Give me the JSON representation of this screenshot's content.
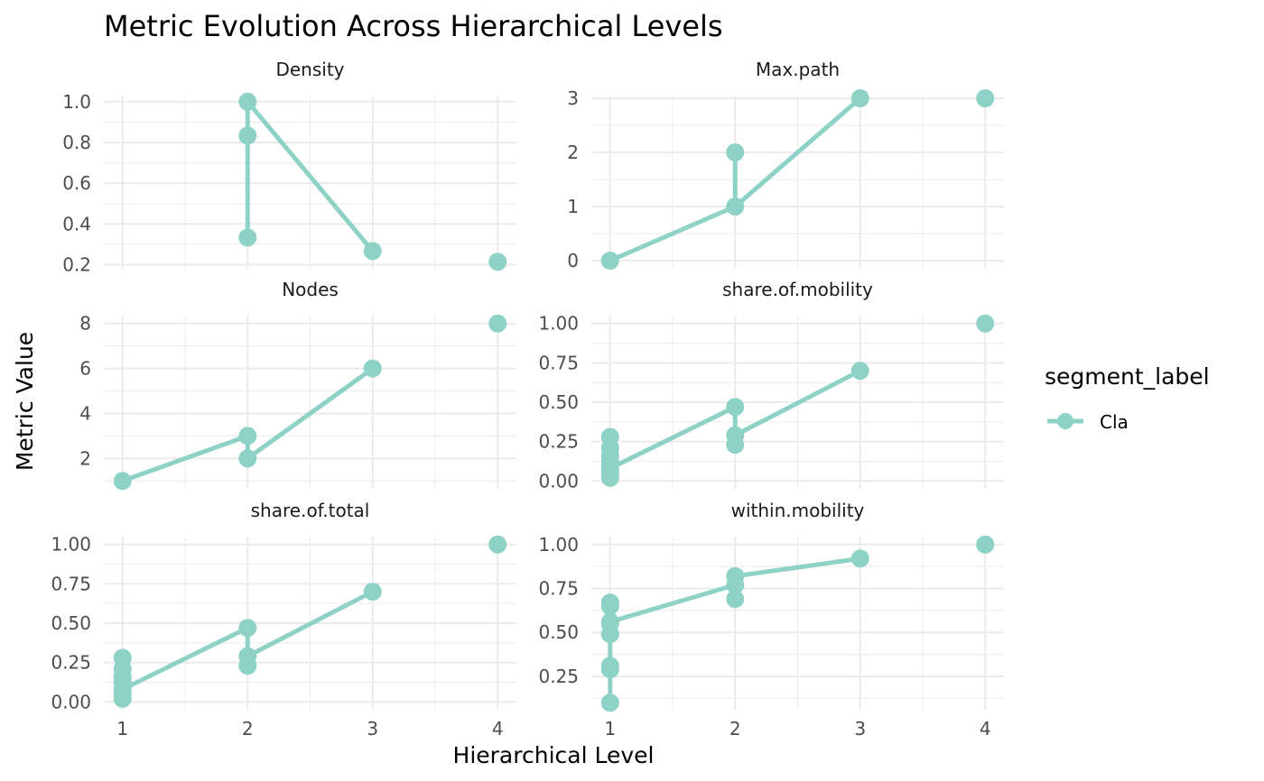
{
  "chart_data": {
    "type": "line",
    "title": "Metric Evolution Across Hierarchical Levels",
    "xlabel": "Hierarchical Level",
    "ylabel": "Metric Value",
    "legend": {
      "title": "segment_label",
      "placement": "right",
      "entries": [
        "Cla"
      ]
    },
    "series_color": "#8ed2c7",
    "grid": true,
    "x_ticks": [
      "1",
      "2",
      "3",
      "4"
    ],
    "xlim": [
      0.85,
      4.15
    ],
    "panels": [
      {
        "name": "Density",
        "ylim": [
          0.18,
          1.03
        ],
        "y_ticks": [
          {
            "v": 0.2,
            "label": "0.2"
          },
          {
            "v": 0.4,
            "label": "0.4"
          },
          {
            "v": 0.6,
            "label": "0.6"
          },
          {
            "v": 0.8,
            "label": "0.8"
          },
          {
            "v": 1.0,
            "label": "1.0"
          }
        ],
        "points": [
          [
            2,
            1.0
          ],
          [
            2,
            0.833
          ],
          [
            2,
            0.333
          ],
          [
            3,
            0.267
          ],
          [
            4,
            0.214
          ]
        ],
        "path": [
          [
            2,
            0.333
          ],
          [
            2,
            0.833
          ],
          [
            2,
            1.0
          ],
          [
            3,
            0.267
          ]
        ]
      },
      {
        "name": "Max.path",
        "ylim": [
          -0.15,
          3.05
        ],
        "y_ticks": [
          {
            "v": 0,
            "label": "0"
          },
          {
            "v": 1,
            "label": "1"
          },
          {
            "v": 2,
            "label": "2"
          },
          {
            "v": 3,
            "label": "3"
          }
        ],
        "points": [
          [
            1,
            0
          ],
          [
            2,
            1
          ],
          [
            2,
            2
          ],
          [
            3,
            3
          ],
          [
            4,
            3
          ]
        ],
        "path": [
          [
            1,
            0
          ],
          [
            2,
            1
          ],
          [
            2,
            2
          ],
          [
            2,
            1
          ],
          [
            3,
            3
          ]
        ]
      },
      {
        "name": "Nodes",
        "ylim": [
          0.65,
          8.35
        ],
        "y_ticks": [
          {
            "v": 2,
            "label": "2"
          },
          {
            "v": 4,
            "label": "4"
          },
          {
            "v": 6,
            "label": "6"
          },
          {
            "v": 8,
            "label": "8"
          }
        ],
        "points": [
          [
            1,
            1
          ],
          [
            2,
            3
          ],
          [
            2,
            2
          ],
          [
            3,
            6
          ],
          [
            4,
            8
          ]
        ],
        "path": [
          [
            1,
            1
          ],
          [
            2,
            3
          ],
          [
            2,
            2
          ],
          [
            3,
            6
          ]
        ]
      },
      {
        "name": "share.of.mobility",
        "ylim": [
          -0.05,
          1.05
        ],
        "y_ticks": [
          {
            "v": 0,
            "label": "0.00"
          },
          {
            "v": 0.25,
            "label": "0.25"
          },
          {
            "v": 0.5,
            "label": "0.50"
          },
          {
            "v": 0.75,
            "label": "0.75"
          },
          {
            "v": 1.0,
            "label": "1.00"
          }
        ],
        "points": [
          [
            1,
            0.28
          ],
          [
            1,
            0.21
          ],
          [
            1,
            0.16
          ],
          [
            1,
            0.12
          ],
          [
            1,
            0.08
          ],
          [
            1,
            0.05
          ],
          [
            1,
            0.02
          ],
          [
            2,
            0.47
          ],
          [
            2,
            0.29
          ],
          [
            2,
            0.23
          ],
          [
            3,
            0.7
          ],
          [
            4,
            1.0
          ]
        ],
        "path": [
          [
            1,
            0.02
          ],
          [
            1,
            0.28
          ],
          [
            1,
            0.08
          ],
          [
            2,
            0.47
          ],
          [
            2,
            0.23
          ],
          [
            2,
            0.29
          ],
          [
            3,
            0.7
          ]
        ]
      },
      {
        "name": "share.of.total",
        "ylim": [
          -0.05,
          1.05
        ],
        "y_ticks": [
          {
            "v": 0,
            "label": "0.00"
          },
          {
            "v": 0.25,
            "label": "0.25"
          },
          {
            "v": 0.5,
            "label": "0.50"
          },
          {
            "v": 0.75,
            "label": "0.75"
          },
          {
            "v": 1.0,
            "label": "1.00"
          }
        ],
        "points": [
          [
            1,
            0.28
          ],
          [
            1,
            0.21
          ],
          [
            1,
            0.16
          ],
          [
            1,
            0.13
          ],
          [
            1,
            0.08
          ],
          [
            1,
            0.05
          ],
          [
            1,
            0.02
          ],
          [
            2,
            0.47
          ],
          [
            2,
            0.29
          ],
          [
            2,
            0.23
          ],
          [
            3,
            0.7
          ],
          [
            4,
            1.0
          ]
        ],
        "path": [
          [
            1,
            0.02
          ],
          [
            1,
            0.28
          ],
          [
            1,
            0.08
          ],
          [
            2,
            0.47
          ],
          [
            2,
            0.23
          ],
          [
            2,
            0.29
          ],
          [
            3,
            0.7
          ]
        ]
      },
      {
        "name": "within.mobility",
        "ylim": [
          0.06,
          1.045
        ],
        "y_ticks": [
          {
            "v": 0.25,
            "label": "0.25"
          },
          {
            "v": 0.5,
            "label": "0.50"
          },
          {
            "v": 0.75,
            "label": "0.75"
          },
          {
            "v": 1.0,
            "label": "1.00"
          }
        ],
        "points": [
          [
            1,
            0.67
          ],
          [
            1,
            0.65
          ],
          [
            1,
            0.56
          ],
          [
            1,
            0.55
          ],
          [
            1,
            0.49
          ],
          [
            1,
            0.31
          ],
          [
            1,
            0.29
          ],
          [
            1,
            0.1
          ],
          [
            2,
            0.82
          ],
          [
            2,
            0.77
          ],
          [
            2,
            0.69
          ],
          [
            3,
            0.92
          ],
          [
            4,
            1.0
          ]
        ],
        "path": [
          [
            1,
            0.1
          ],
          [
            1,
            0.67
          ],
          [
            1,
            0.56
          ],
          [
            2,
            0.77
          ],
          [
            2,
            0.82
          ],
          [
            3,
            0.92
          ]
        ]
      }
    ]
  }
}
